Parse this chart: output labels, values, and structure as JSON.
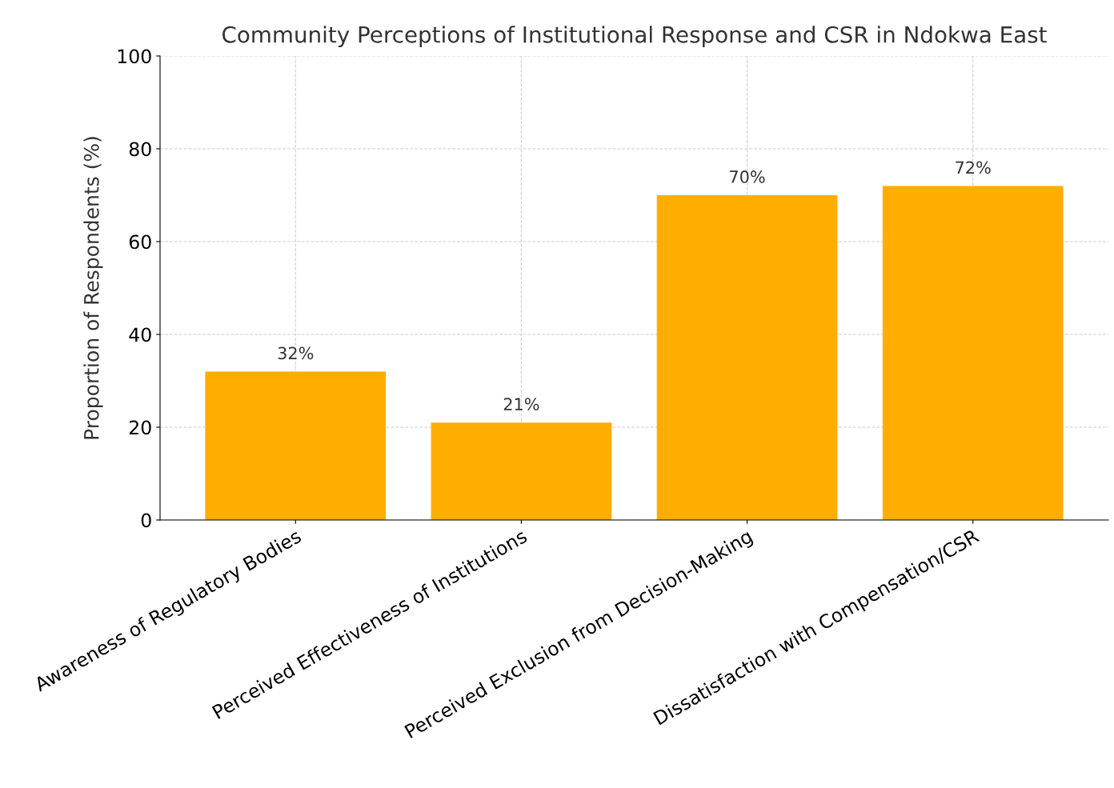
{
  "chart_data": {
    "type": "bar",
    "title": "Community Perceptions of Institutional Response and CSR in Ndokwa East",
    "ylabel": "Proportion of Respondents (%)",
    "categories": [
      "Awareness of Regulatory Bodies",
      "Perceived Effectiveness of Institutions",
      "Perceived Exclusion from Decision-Making",
      "Dissatisfaction with Compensation/CSR"
    ],
    "values": [
      32,
      21,
      70,
      72
    ],
    "value_labels": [
      "32%",
      "21%",
      "70%",
      "72%"
    ],
    "color": "#ffae00",
    "ylim": [
      0,
      100
    ],
    "yticks": [
      0,
      20,
      40,
      60,
      80,
      100
    ],
    "grid": true
  }
}
